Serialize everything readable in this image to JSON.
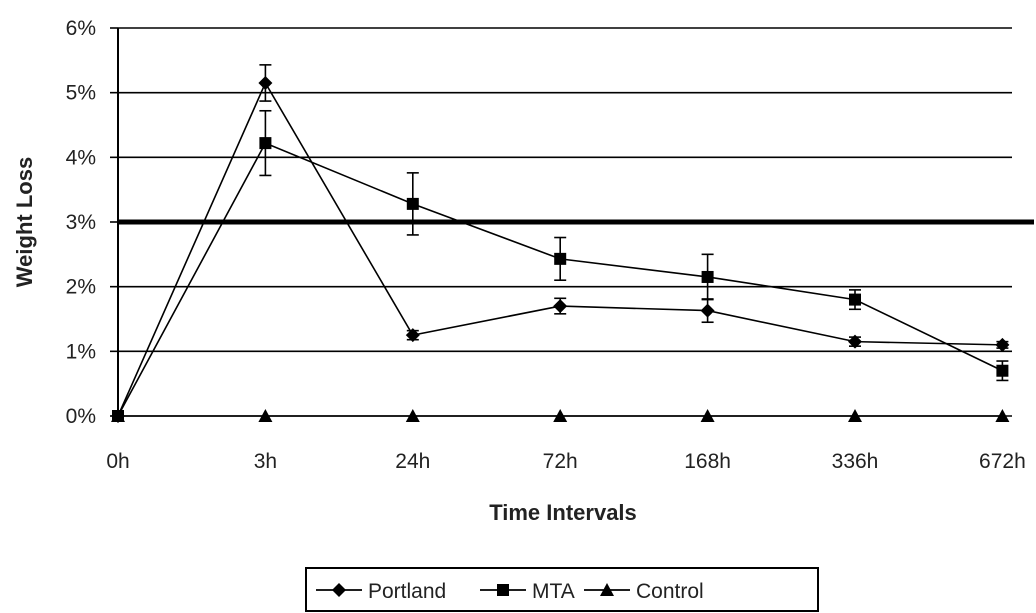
{
  "chart_data": {
    "type": "line",
    "xlabel": "Time Intervals",
    "ylabel": "Weight Loss",
    "categories": [
      "0h",
      "3h",
      "24h",
      "72h",
      "168h",
      "336h",
      "672h"
    ],
    "ylim": [
      0,
      6
    ],
    "yticks": [
      "0%",
      "1%",
      "2%",
      "3%",
      "4%",
      "5%",
      "6%"
    ],
    "grid": true,
    "reference_line": 3,
    "legend_position": "bottom",
    "series": [
      {
        "name": "Portland",
        "marker": "diamond",
        "values": [
          0,
          5.15,
          1.25,
          1.7,
          1.63,
          1.15,
          1.1
        ],
        "error": [
          0,
          0.28,
          0.07,
          0.12,
          0.18,
          0.07,
          0.05
        ]
      },
      {
        "name": "MTA",
        "marker": "square",
        "values": [
          0,
          4.22,
          3.28,
          2.43,
          2.15,
          1.8,
          0.7
        ],
        "error": [
          0,
          0.5,
          0.48,
          0.33,
          0.35,
          0.15,
          0.15
        ]
      },
      {
        "name": "Control",
        "marker": "triangle",
        "values": [
          0,
          0,
          0,
          0,
          0,
          0,
          0
        ],
        "error": [
          0,
          0,
          0,
          0,
          0,
          0,
          0
        ]
      }
    ]
  }
}
